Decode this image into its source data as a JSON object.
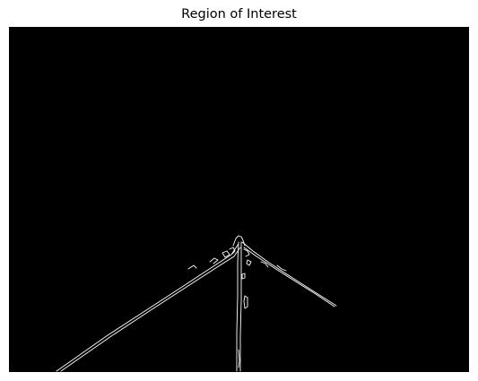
{
  "figure": {
    "title": "Region of Interest",
    "image": {
      "description_name": "canny-edge-lane-image",
      "background_color": "#000000",
      "edge_color": "#ffffff"
    }
  }
}
